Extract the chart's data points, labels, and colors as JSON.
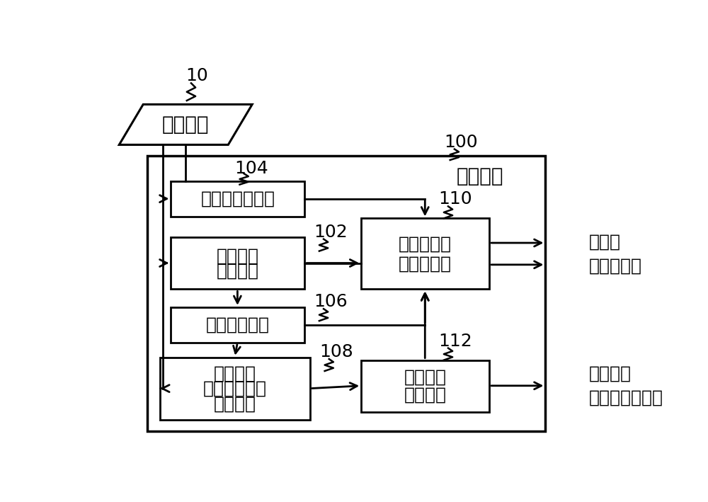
{
  "bg_color": "#ffffff",
  "fig_width": 10.0,
  "fig_height": 7.09,
  "title": "编码装置",
  "label_10": "10",
  "label_100": "100",
  "label_104": "104",
  "label_102": "102",
  "label_106": "106",
  "label_108": "108",
  "label_110": "110",
  "label_112": "112",
  "pixel_data_label": "体素数据",
  "box1_label": "上下文生成单元",
  "box2_line1": "结构信息",
  "box2_line2": "生成单元",
  "box3_label": "颜色预测单元",
  "box4_line1": "颜色信息",
  "box4_line2": "（预测误差）",
  "box4_line3": "生成单元",
  "box5_line1": "基于上下文",
  "box5_line2": "的编码单元",
  "box6_line1": "颜色信息",
  "box6_line2": "编码单元",
  "out1_line1": "结构码",
  "out1_line2": "颜色预测码",
  "out2_line1": "颜色信息",
  "out2_line2": "（预测误差）码"
}
